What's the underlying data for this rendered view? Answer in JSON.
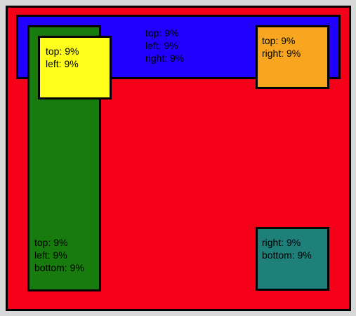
{
  "colors": {
    "background": "#d8d8d8",
    "container": "#f50018",
    "blue": "#2200ff",
    "green": "#177b0d",
    "yellow": "#ffff1a",
    "orange": "#f8a51f",
    "teal": "#1f7f79",
    "border": "#000000"
  },
  "boxes": {
    "blue": {
      "lines": [
        "top: 9%",
        "left: 9%",
        "right: 9%"
      ]
    },
    "yellow": {
      "lines": [
        "top: 9%",
        "left: 9%"
      ]
    },
    "orange": {
      "lines": [
        "top: 9%",
        "right: 9%"
      ]
    },
    "green": {
      "lines": [
        "top: 9%",
        "left: 9%",
        "bottom: 9%"
      ]
    },
    "teal": {
      "lines": [
        "right: 9%",
        "bottom: 9%"
      ]
    }
  }
}
